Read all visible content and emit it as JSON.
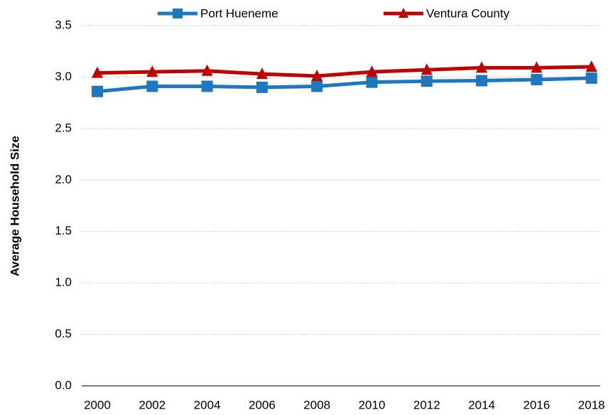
{
  "chart_data": {
    "type": "line",
    "y_label": "Average Household Size",
    "categories": [
      "2000",
      "2002",
      "2004",
      "2006",
      "2008",
      "2010",
      "2012",
      "2014",
      "2016",
      "2018"
    ],
    "series": [
      {
        "name": "Port Hueneme",
        "color": "#1f77c0",
        "marker": "square",
        "values": [
          2.86,
          2.91,
          2.91,
          2.9,
          2.91,
          2.95,
          2.96,
          2.965,
          2.975,
          2.99
        ]
      },
      {
        "name": "Ventura County",
        "color": "#c00000",
        "marker": "triangle",
        "values": [
          3.04,
          3.05,
          3.06,
          3.03,
          3.01,
          3.05,
          3.07,
          3.09,
          3.09,
          3.1
        ]
      }
    ],
    "ylim": [
      0,
      3.5
    ],
    "yticks": [
      {
        "value": 0,
        "label": "0.0"
      },
      0.5,
      {
        "value": 1,
        "label": "1.0"
      },
      1.5,
      {
        "value": 2,
        "label": "2.0"
      },
      2.5,
      {
        "value": 3,
        "label": "3.0"
      },
      3.5
    ],
    "grid": true,
    "legend": "top"
  }
}
